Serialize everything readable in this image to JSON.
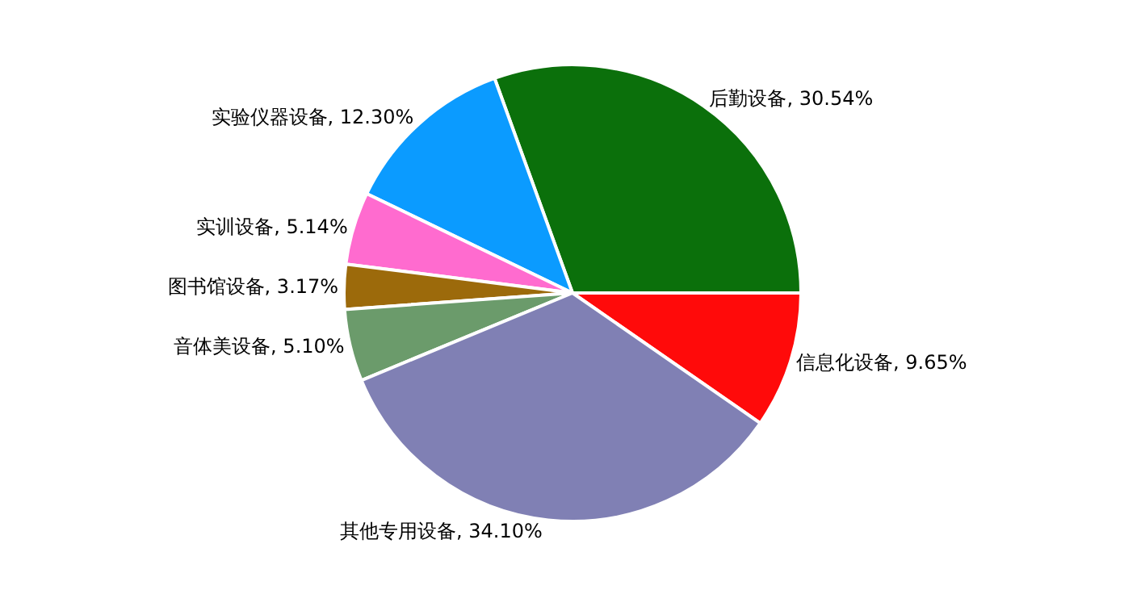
{
  "chart_data": {
    "type": "pie",
    "categories": [
      "信息化设备",
      "后勤设备",
      "实验仪器设备",
      "实训设备",
      "图书馆设备",
      "音体美设备",
      "其他专用设备"
    ],
    "values": [
      9.65,
      30.54,
      12.3,
      5.14,
      3.17,
      5.1,
      34.1
    ],
    "value_labels": [
      "9.65%",
      "30.54%",
      "12.30%",
      "5.14%",
      "3.17%",
      "5.10%",
      "34.10%"
    ],
    "colors": [
      "#ff0a0a",
      "#0b700b",
      "#0b9bff",
      "#ff6bcf",
      "#9c6a0b",
      "#6b9b6b",
      "#8080b4"
    ],
    "legend": false
  }
}
